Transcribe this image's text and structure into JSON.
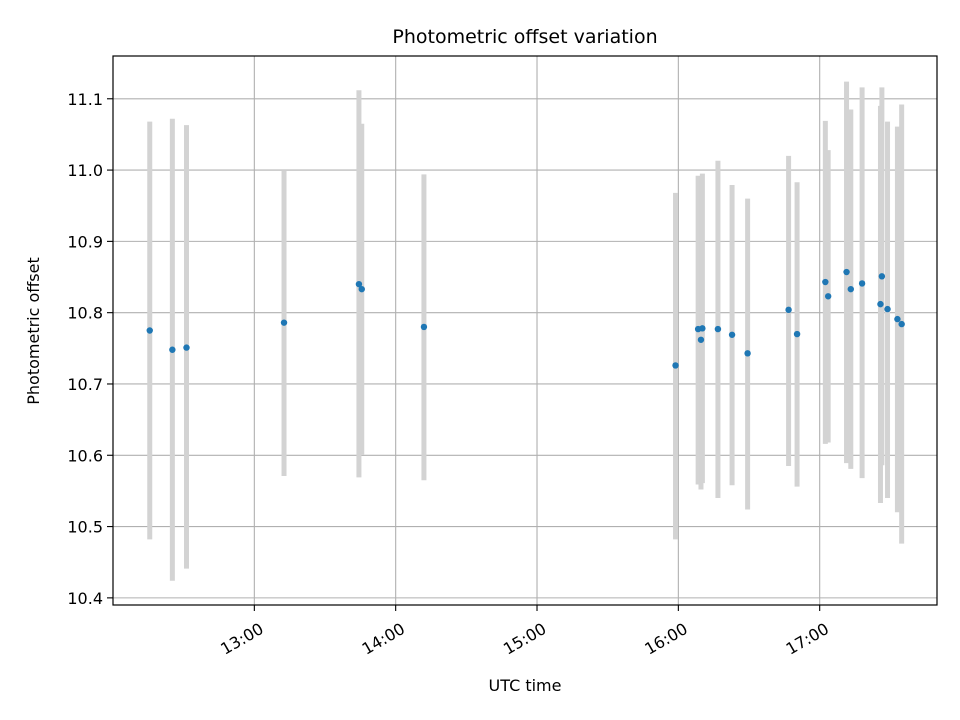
{
  "chart_data": {
    "type": "scatter",
    "title": "Photometric offset variation",
    "xlabel": "UTC time",
    "ylabel": "Photometric offset",
    "x_unit": "UTC hour",
    "xlim": [
      12.0,
      17.83
    ],
    "ylim": [
      10.39,
      11.16
    ],
    "grid": true,
    "x_ticks": [
      {
        "value": 13,
        "label": "13:00"
      },
      {
        "value": 14,
        "label": "14:00"
      },
      {
        "value": 15,
        "label": "15:00"
      },
      {
        "value": 16,
        "label": "16:00"
      },
      {
        "value": 17,
        "label": "17:00"
      }
    ],
    "y_ticks": [
      {
        "value": 10.4,
        "label": "10.4"
      },
      {
        "value": 10.5,
        "label": "10.5"
      },
      {
        "value": 10.6,
        "label": "10.6"
      },
      {
        "value": 10.7,
        "label": "10.7"
      },
      {
        "value": 10.8,
        "label": "10.8"
      },
      {
        "value": 10.9,
        "label": "10.9"
      },
      {
        "value": 11.0,
        "label": "11.0"
      },
      {
        "value": 11.1,
        "label": "11.1"
      }
    ],
    "point_color": "#1f77b4",
    "errorbar_color": "#d3d3d3",
    "points": [
      {
        "x": 12.26,
        "y": 10.775,
        "ylow": 10.482,
        "yhigh": 11.068
      },
      {
        "x": 12.42,
        "y": 10.748,
        "ylow": 10.424,
        "yhigh": 11.072
      },
      {
        "x": 12.52,
        "y": 10.751,
        "ylow": 10.441,
        "yhigh": 11.063
      },
      {
        "x": 13.21,
        "y": 10.786,
        "ylow": 10.571,
        "yhigh": 11.0
      },
      {
        "x": 13.74,
        "y": 10.84,
        "ylow": 10.569,
        "yhigh": 11.112
      },
      {
        "x": 13.76,
        "y": 10.833,
        "ylow": 10.601,
        "yhigh": 11.065
      },
      {
        "x": 14.2,
        "y": 10.78,
        "ylow": 10.565,
        "yhigh": 10.994
      },
      {
        "x": 15.98,
        "y": 10.726,
        "ylow": 10.482,
        "yhigh": 10.968
      },
      {
        "x": 16.14,
        "y": 10.777,
        "ylow": 10.559,
        "yhigh": 10.992
      },
      {
        "x": 16.16,
        "y": 10.762,
        "ylow": 10.552,
        "yhigh": 10.97
      },
      {
        "x": 16.17,
        "y": 10.778,
        "ylow": 10.561,
        "yhigh": 10.995
      },
      {
        "x": 16.28,
        "y": 10.777,
        "ylow": 10.54,
        "yhigh": 11.013
      },
      {
        "x": 16.38,
        "y": 10.769,
        "ylow": 10.558,
        "yhigh": 10.979
      },
      {
        "x": 16.49,
        "y": 10.743,
        "ylow": 10.524,
        "yhigh": 10.96
      },
      {
        "x": 16.78,
        "y": 10.804,
        "ylow": 10.585,
        "yhigh": 11.02
      },
      {
        "x": 16.84,
        "y": 10.77,
        "ylow": 10.556,
        "yhigh": 10.983
      },
      {
        "x": 17.04,
        "y": 10.843,
        "ylow": 10.616,
        "yhigh": 11.069
      },
      {
        "x": 17.06,
        "y": 10.823,
        "ylow": 10.618,
        "yhigh": 11.028
      },
      {
        "x": 17.19,
        "y": 10.857,
        "ylow": 10.589,
        "yhigh": 11.124
      },
      {
        "x": 17.22,
        "y": 10.833,
        "ylow": 10.581,
        "yhigh": 11.085
      },
      {
        "x": 17.3,
        "y": 10.841,
        "ylow": 10.568,
        "yhigh": 11.116
      },
      {
        "x": 17.43,
        "y": 10.812,
        "ylow": 10.533,
        "yhigh": 11.09
      },
      {
        "x": 17.44,
        "y": 10.851,
        "ylow": 10.586,
        "yhigh": 11.116
      },
      {
        "x": 17.48,
        "y": 10.805,
        "ylow": 10.54,
        "yhigh": 11.068
      },
      {
        "x": 17.55,
        "y": 10.791,
        "ylow": 10.52,
        "yhigh": 11.061
      },
      {
        "x": 17.58,
        "y": 10.784,
        "ylow": 10.476,
        "yhigh": 11.092
      }
    ]
  }
}
